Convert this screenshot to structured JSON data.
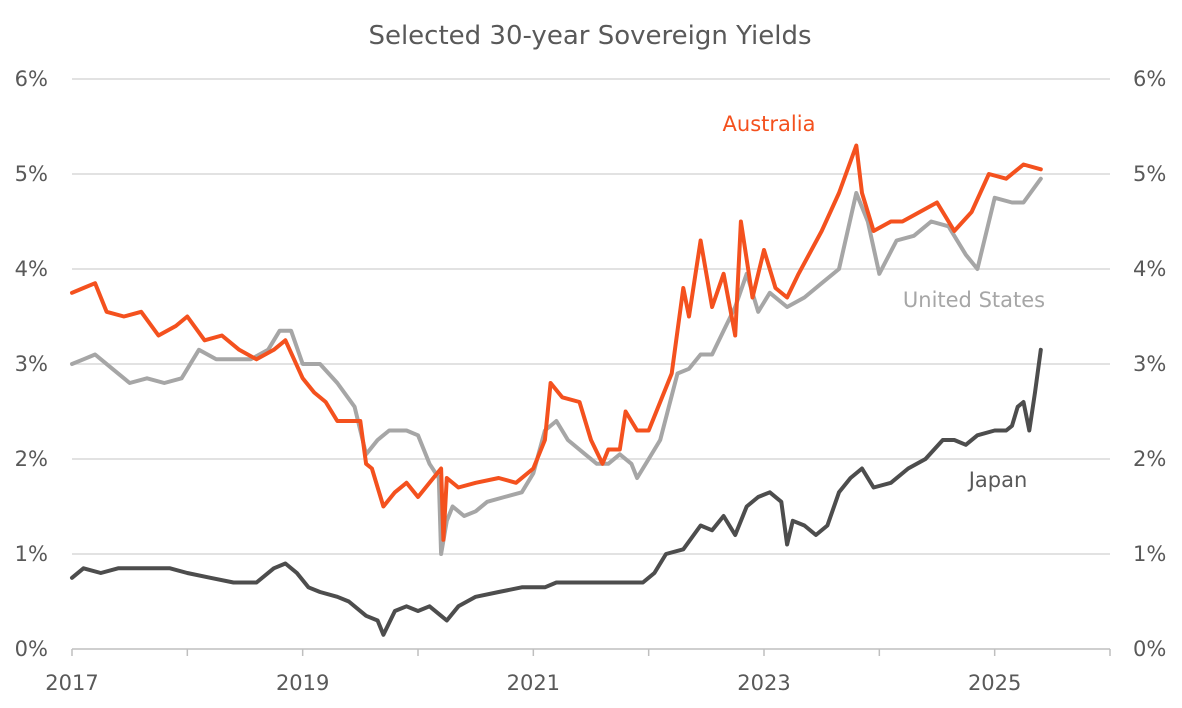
{
  "chart_data": {
    "type": "line",
    "title": "Selected 30-year Sovereign Yields",
    "x_ticks": [
      "2017",
      "2019",
      "2021",
      "2023",
      "2025"
    ],
    "x_range": [
      2017.0,
      2026.0
    ],
    "y_ticks_left": [
      "0%",
      "1%",
      "2%",
      "3%",
      "4%",
      "5%",
      "6%"
    ],
    "y_ticks_right": [
      "0%",
      "1%",
      "2%",
      "3%",
      "4%",
      "5%",
      "6%"
    ],
    "ylim": [
      0,
      6
    ],
    "y_unit": "%",
    "grid": "horizontal",
    "series": [
      {
        "name": "Australia",
        "color": "#f4511e",
        "x": [
          2017.0,
          2017.1,
          2017.2,
          2017.3,
          2017.45,
          2017.6,
          2017.75,
          2017.9,
          2018.0,
          2018.15,
          2018.3,
          2018.45,
          2018.6,
          2018.75,
          2018.85,
          2019.0,
          2019.1,
          2019.2,
          2019.3,
          2019.5,
          2019.55,
          2019.6,
          2019.7,
          2019.8,
          2019.9,
          2020.0,
          2020.1,
          2020.2,
          2020.22,
          2020.25,
          2020.35,
          2020.5,
          2020.7,
          2020.85,
          2021.0,
          2021.1,
          2021.15,
          2021.25,
          2021.4,
          2021.5,
          2021.6,
          2021.65,
          2021.75,
          2021.8,
          2021.9,
          2022.0,
          2022.1,
          2022.2,
          2022.3,
          2022.35,
          2022.45,
          2022.55,
          2022.65,
          2022.75,
          2022.8,
          2022.9,
          2023.0,
          2023.1,
          2023.2,
          2023.3,
          2023.5,
          2023.65,
          2023.8,
          2023.85,
          2023.95,
          2024.1,
          2024.2,
          2024.35,
          2024.5,
          2024.65,
          2024.8,
          2024.95,
          2025.1,
          2025.25,
          2025.4
        ],
        "values": [
          3.75,
          3.8,
          3.85,
          3.55,
          3.5,
          3.55,
          3.3,
          3.4,
          3.5,
          3.25,
          3.3,
          3.15,
          3.05,
          3.15,
          3.25,
          2.85,
          2.7,
          2.6,
          2.4,
          2.4,
          1.95,
          1.9,
          1.5,
          1.65,
          1.75,
          1.6,
          1.75,
          1.9,
          1.15,
          1.8,
          1.7,
          1.75,
          1.8,
          1.75,
          1.9,
          2.2,
          2.8,
          2.65,
          2.6,
          2.2,
          1.95,
          2.1,
          2.1,
          2.5,
          2.3,
          2.3,
          2.6,
          2.9,
          3.8,
          3.5,
          4.3,
          3.6,
          3.95,
          3.3,
          4.5,
          3.7,
          4.2,
          3.8,
          3.7,
          3.95,
          4.4,
          4.8,
          5.3,
          4.8,
          4.4,
          4.5,
          4.5,
          4.6,
          4.7,
          4.4,
          4.6,
          5.0,
          4.95,
          5.1,
          5.05
        ]
      },
      {
        "name": "United States",
        "color": "#a6a6a6",
        "x": [
          2017.0,
          2017.1,
          2017.2,
          2017.35,
          2017.5,
          2017.65,
          2017.8,
          2017.95,
          2018.1,
          2018.25,
          2018.4,
          2018.55,
          2018.7,
          2018.8,
          2018.9,
          2019.0,
          2019.15,
          2019.3,
          2019.45,
          2019.55,
          2019.65,
          2019.75,
          2019.9,
          2020.0,
          2020.1,
          2020.18,
          2020.2,
          2020.25,
          2020.3,
          2020.4,
          2020.5,
          2020.6,
          2020.75,
          2020.9,
          2021.0,
          2021.1,
          2021.2,
          2021.3,
          2021.45,
          2021.55,
          2021.65,
          2021.75,
          2021.85,
          2021.9,
          2022.0,
          2022.1,
          2022.25,
          2022.35,
          2022.45,
          2022.55,
          2022.65,
          2022.75,
          2022.85,
          2022.95,
          2023.05,
          2023.2,
          2023.35,
          2023.5,
          2023.65,
          2023.8,
          2023.9,
          2024.0,
          2024.15,
          2024.3,
          2024.45,
          2024.6,
          2024.75,
          2024.85,
          2025.0,
          2025.15,
          2025.25,
          2025.4
        ],
        "values": [
          3.0,
          3.05,
          3.1,
          2.95,
          2.8,
          2.85,
          2.8,
          2.85,
          3.15,
          3.05,
          3.05,
          3.05,
          3.15,
          3.35,
          3.35,
          3.0,
          3.0,
          2.8,
          2.55,
          2.05,
          2.2,
          2.3,
          2.3,
          2.25,
          1.95,
          1.8,
          1.0,
          1.35,
          1.5,
          1.4,
          1.45,
          1.55,
          1.6,
          1.65,
          1.85,
          2.3,
          2.4,
          2.2,
          2.05,
          1.95,
          1.95,
          2.05,
          1.95,
          1.8,
          2.0,
          2.2,
          2.9,
          2.95,
          3.1,
          3.1,
          3.35,
          3.6,
          3.95,
          3.55,
          3.75,
          3.6,
          3.7,
          3.85,
          4.0,
          4.8,
          4.5,
          3.95,
          4.3,
          4.35,
          4.5,
          4.45,
          4.15,
          4.0,
          4.75,
          4.7,
          4.7,
          4.95
        ]
      },
      {
        "name": "Japan",
        "color": "#4d4d4d",
        "x": [
          2017.0,
          2017.1,
          2017.25,
          2017.4,
          2017.55,
          2017.7,
          2017.85,
          2018.0,
          2018.2,
          2018.4,
          2018.6,
          2018.75,
          2018.85,
          2018.95,
          2019.05,
          2019.15,
          2019.3,
          2019.4,
          2019.55,
          2019.65,
          2019.7,
          2019.8,
          2019.9,
          2020.0,
          2020.1,
          2020.2,
          2020.25,
          2020.35,
          2020.5,
          2020.7,
          2020.9,
          2021.1,
          2021.2,
          2021.4,
          2021.6,
          2021.8,
          2021.95,
          2022.05,
          2022.15,
          2022.3,
          2022.45,
          2022.55,
          2022.65,
          2022.75,
          2022.85,
          2022.95,
          2023.05,
          2023.15,
          2023.2,
          2023.25,
          2023.35,
          2023.45,
          2023.55,
          2023.65,
          2023.75,
          2023.85,
          2023.95,
          2024.1,
          2024.25,
          2024.4,
          2024.55,
          2024.65,
          2024.75,
          2024.85,
          2025.0,
          2025.1,
          2025.15,
          2025.2,
          2025.25,
          2025.3,
          2025.35,
          2025.4
        ],
        "values": [
          0.75,
          0.85,
          0.8,
          0.85,
          0.85,
          0.85,
          0.85,
          0.8,
          0.75,
          0.7,
          0.7,
          0.85,
          0.9,
          0.8,
          0.65,
          0.6,
          0.55,
          0.5,
          0.35,
          0.3,
          0.15,
          0.4,
          0.45,
          0.4,
          0.45,
          0.35,
          0.3,
          0.45,
          0.55,
          0.6,
          0.65,
          0.65,
          0.7,
          0.7,
          0.7,
          0.7,
          0.7,
          0.8,
          1.0,
          1.05,
          1.3,
          1.25,
          1.4,
          1.2,
          1.5,
          1.6,
          1.65,
          1.55,
          1.1,
          1.35,
          1.3,
          1.2,
          1.3,
          1.65,
          1.8,
          1.9,
          1.7,
          1.75,
          1.9,
          2.0,
          2.2,
          2.2,
          2.15,
          2.25,
          2.3,
          2.3,
          2.35,
          2.55,
          2.6,
          2.3,
          2.7,
          3.15
        ]
      }
    ],
    "label_colors": {
      "Australia": "#f4511e",
      "United States": "#a6a6a6",
      "Japan": "#595959"
    }
  }
}
